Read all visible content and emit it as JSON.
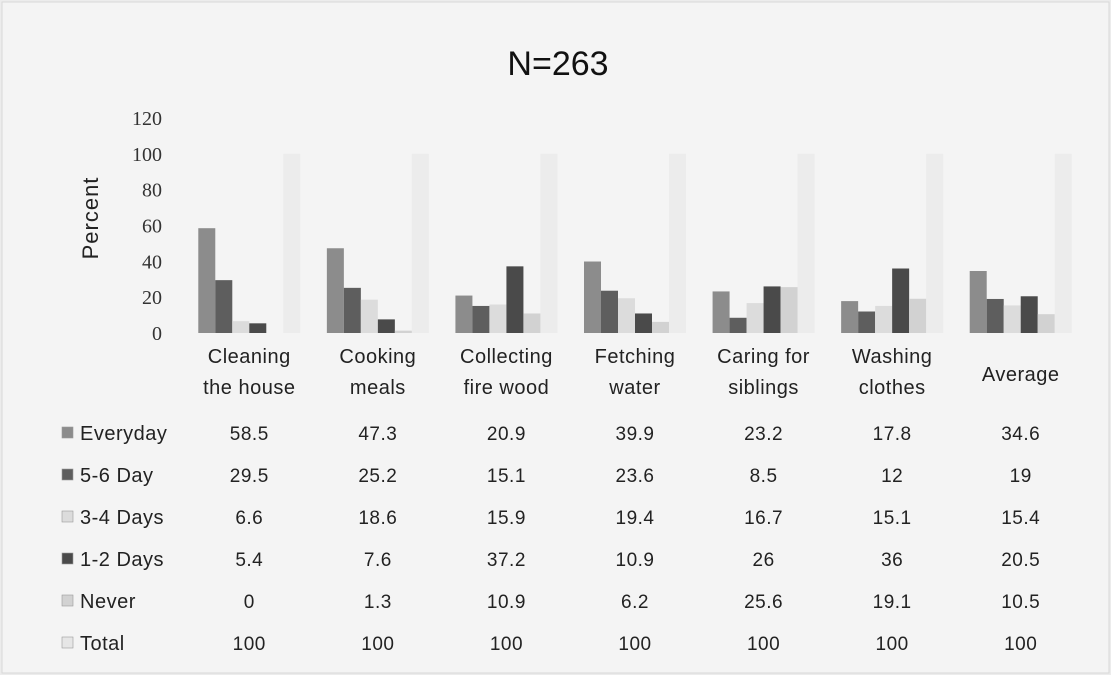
{
  "chart_data": {
    "type": "bar",
    "title": "N=263",
    "ylabel": "Percent",
    "xlabel": "",
    "ylim": [
      0,
      120
    ],
    "yticks": [
      "0",
      "20",
      "40",
      "60",
      "80",
      "100",
      "120"
    ],
    "categories": [
      [
        "Cleaning",
        "the house"
      ],
      [
        "Cooking",
        "meals"
      ],
      [
        "Collecting",
        "fire wood"
      ],
      [
        "Fetching",
        "water"
      ],
      [
        "Caring for",
        "siblings"
      ],
      [
        "Washing",
        "clothes"
      ],
      [
        "Average"
      ]
    ],
    "series": [
      {
        "name": "Everyday",
        "color": "#8c8c8c",
        "values": [
          58.5,
          47.3,
          20.9,
          39.9,
          23.2,
          17.8,
          34.6
        ],
        "labels": [
          "58.5",
          "47.3",
          "20.9",
          "39.9",
          "23.2",
          "17.8",
          "34.6"
        ]
      },
      {
        "name": "5-6 Day",
        "color": "#5e5e5e",
        "values": [
          29.5,
          25.2,
          15.1,
          23.6,
          8.5,
          12,
          19
        ],
        "labels": [
          "29.5",
          "25.2",
          "15.1",
          "23.6",
          "8.5",
          "12",
          "19"
        ]
      },
      {
        "name": "3-4 Days",
        "color": "#dcdcdc",
        "values": [
          6.6,
          18.6,
          15.9,
          19.4,
          16.7,
          15.1,
          15.4
        ],
        "labels": [
          "6.6",
          "18.6",
          "15.9",
          "19.4",
          "16.7",
          "15.1",
          "15.4"
        ]
      },
      {
        "name": "1-2 Days",
        "color": "#4a4a4a",
        "values": [
          5.4,
          7.6,
          37.2,
          10.9,
          26,
          36,
          20.5
        ],
        "labels": [
          "5.4",
          "7.6",
          "37.2",
          "10.9",
          "26",
          "36",
          "20.5"
        ]
      },
      {
        "name": "Never",
        "color": "#d2d2d2",
        "values": [
          0,
          1.3,
          10.9,
          6.2,
          25.6,
          19.1,
          10.5
        ],
        "labels": [
          "0",
          "1.3",
          "10.9",
          "6.2",
          "25.6",
          "19.1",
          "10.5"
        ]
      },
      {
        "name": "Total",
        "color": "#e6e6e6",
        "values": [
          100,
          100,
          100,
          100,
          100,
          100,
          100
        ],
        "labels": [
          "100",
          "100",
          "100",
          "100",
          "100",
          "100",
          "100"
        ]
      }
    ],
    "legend": "data-table",
    "grid": false
  }
}
